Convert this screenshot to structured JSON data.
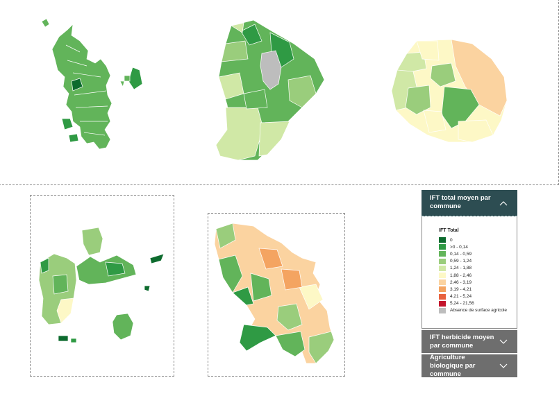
{
  "legend_panel": {
    "active_section": {
      "title": "IFT total moyen par commune",
      "state": "expanded"
    },
    "legend_title": "IFT Total",
    "classes": [
      {
        "label": "0",
        "color": "#0d6b2e"
      },
      {
        "label": ">0 - 0,14",
        "color": "#2f9a44"
      },
      {
        "label": "0,14 - 0,59",
        "color": "#62b45a"
      },
      {
        "label": "0,59 - 1,24",
        "color": "#9acd7c"
      },
      {
        "label": "1,24 - 1,88",
        "color": "#d0e8a6"
      },
      {
        "label": "1,88 - 2,46",
        "color": "#fdf8c6"
      },
      {
        "label": "2,46 - 3,19",
        "color": "#fbd3a0"
      },
      {
        "label": "3,19 - 4,21",
        "color": "#f4a461"
      },
      {
        "label": "4,21 - 5,24",
        "color": "#e8623f"
      },
      {
        "label": "5,24 - 21,56",
        "color": "#c3142c"
      },
      {
        "label": "Absence de surface agricole",
        "color": "#bdbdbd"
      }
    ],
    "collapsed_sections": [
      {
        "title": "IFT herbicide moyen par commune"
      },
      {
        "title": "Agriculture biologique par commune"
      }
    ],
    "icons": {
      "expanded": "chevron-up-icon",
      "collapsed": "chevron-down-icon"
    }
  },
  "maps": [
    {
      "territory": "Mayotte",
      "dominant_class": "0,14 - 0,59"
    },
    {
      "territory": "Guyane",
      "dominant_class": "0,14 - 0,59"
    },
    {
      "territory": "La Réunion",
      "dominant_class": "1,88 - 2,46"
    },
    {
      "territory": "Guadeloupe",
      "dominant_class": "0,59 - 1,24"
    },
    {
      "territory": "Martinique",
      "dominant_class": "2,46 - 3,19"
    }
  ]
}
